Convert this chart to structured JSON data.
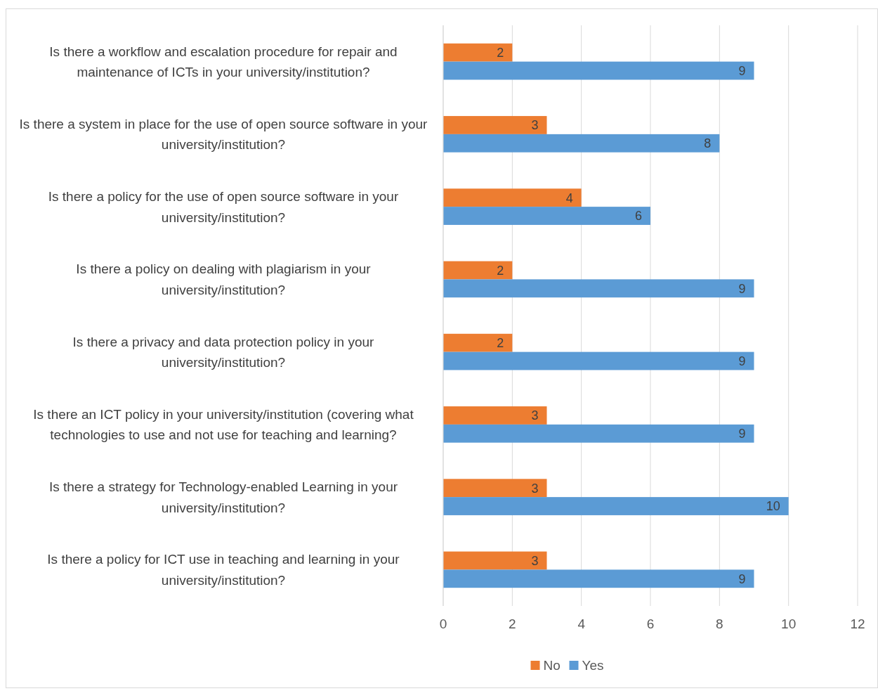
{
  "chart_data": {
    "type": "bar",
    "orientation": "horizontal",
    "categories": [
      "Is there a workflow and escalation procedure for repair and maintenance of ICTs in your university/institution?",
      "Is there a system in place for the use of open source software in your university/institution?",
      "Is there a policy for the use of open source software in your university/institution?",
      "Is there a policy on dealing with plagiarism in your university/institution?",
      "Is there a privacy and data protection policy in your university/institution?",
      "Is there an ICT policy in your university/institution (covering what technologies to use and not use for teaching and learning?",
      "Is there a strategy for Technology-enabled Learning in your university/institution?",
      "Is there a policy for ICT use in teaching and learning in your university/institution?"
    ],
    "series": [
      {
        "name": "No",
        "color": "#ed7d31",
        "values": [
          2,
          3,
          4,
          2,
          2,
          3,
          3,
          3
        ]
      },
      {
        "name": "Yes",
        "color": "#5b9bd5",
        "values": [
          9,
          8,
          6,
          9,
          9,
          9,
          10,
          9
        ]
      }
    ],
    "xlim": [
      0,
      12
    ],
    "xticks": [
      0,
      2,
      4,
      6,
      8,
      10,
      12
    ],
    "grid": "x",
    "legend": "bottom",
    "data_labels": true
  }
}
